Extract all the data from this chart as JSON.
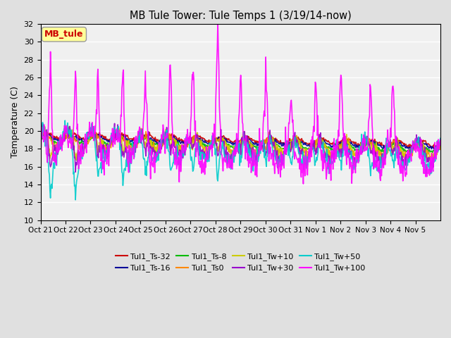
{
  "title": "MB Tule Tower: Tule Temps 1 (3/19/14-now)",
  "ylabel": "Temperature (C)",
  "ylim": [
    10,
    32
  ],
  "yticks": [
    10,
    12,
    14,
    16,
    18,
    20,
    22,
    24,
    26,
    28,
    30,
    32
  ],
  "xtick_labels": [
    "Oct 21",
    "Oct 22",
    "Oct 23",
    "Oct 24",
    "Oct 25",
    "Oct 26",
    "Oct 27",
    "Oct 28",
    "Oct 29",
    "Oct 30",
    "Oct 31",
    "Nov 1",
    "Nov 2",
    "Nov 3",
    "Nov 4",
    "Nov 5"
  ],
  "legend_label": "MB_tule",
  "series": [
    {
      "name": "Tul1_Ts-32",
      "color": "#cc0000",
      "lw": 1.2
    },
    {
      "name": "Tul1_Ts-16",
      "color": "#000099",
      "lw": 1.2
    },
    {
      "name": "Tul1_Ts-8",
      "color": "#00bb00",
      "lw": 1.2
    },
    {
      "name": "Tul1_Ts0",
      "color": "#ff8800",
      "lw": 1.2
    },
    {
      "name": "Tul1_Tw+10",
      "color": "#cccc00",
      "lw": 1.2
    },
    {
      "name": "Tul1_Tw+30",
      "color": "#9900cc",
      "lw": 1.2
    },
    {
      "name": "Tul1_Tw+50",
      "color": "#00cccc",
      "lw": 1.2
    },
    {
      "name": "Tul1_Tw+100",
      "color": "#ff00ff",
      "lw": 1.2
    }
  ],
  "bg_color": "#e0e0e0",
  "plot_bg": "#f0f0f0"
}
